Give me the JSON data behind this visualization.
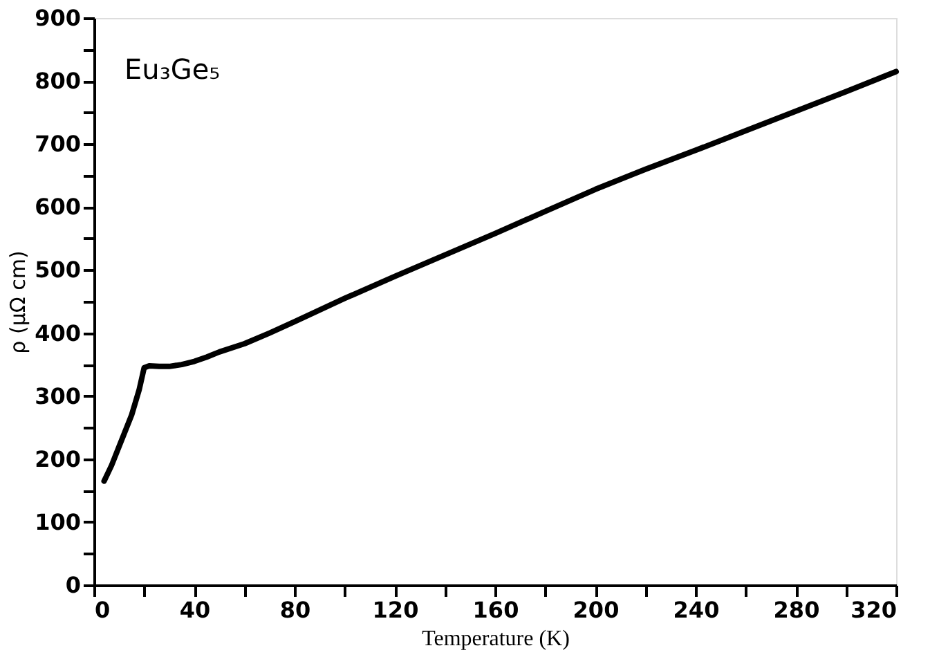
{
  "chart_data": {
    "type": "line",
    "xlabel": "Temperature (K)",
    "ylabel": "ρ (μΩ cm)",
    "annotations": [
      "Eu₃Ge₅"
    ],
    "x": [
      4,
      7,
      10,
      13,
      15,
      18,
      20,
      22,
      26,
      30,
      35,
      40,
      45,
      50,
      60,
      70,
      80,
      100,
      120,
      140,
      160,
      180,
      200,
      220,
      240,
      260,
      280,
      300,
      320
    ],
    "series": [
      {
        "color": "#000000",
        "values": [
          165,
          190,
          220,
          250,
          270,
          310,
          345,
          348,
          347,
          347,
          350,
          355,
          362,
          370,
          383,
          400,
          418,
          455,
          490,
          524,
          558,
          593,
          628,
          660,
          690,
          721,
          752,
          783,
          815
        ]
      }
    ],
    "xlim": [
      0,
      320
    ],
    "ylim": [
      0,
      900
    ],
    "xticks": [
      0,
      {
        "value": 20,
        "label": null
      },
      40,
      {
        "value": 60,
        "label": null
      },
      80,
      {
        "value": 100,
        "label": null
      },
      120,
      {
        "value": 140,
        "label": null
      },
      160,
      {
        "value": 180,
        "label": null
      },
      200,
      {
        "value": 220,
        "label": null
      },
      240,
      {
        "value": 260,
        "label": null
      },
      280,
      {
        "value": 300,
        "label": null
      },
      320
    ],
    "yticks": [
      0,
      {
        "value": 50,
        "label": null
      },
      100,
      {
        "value": 150,
        "label": null
      },
      200,
      {
        "value": 250,
        "label": null
      },
      300,
      {
        "value": 350,
        "label": null
      },
      400,
      {
        "value": 450,
        "label": null
      },
      500,
      {
        "value": 550,
        "label": null
      },
      600,
      {
        "value": 650,
        "label": null
      },
      700,
      {
        "value": 750,
        "label": null
      },
      800,
      {
        "value": 850,
        "label": null
      },
      900
    ],
    "grid": false,
    "legend": false,
    "marker": "none",
    "line_style": "solid"
  }
}
